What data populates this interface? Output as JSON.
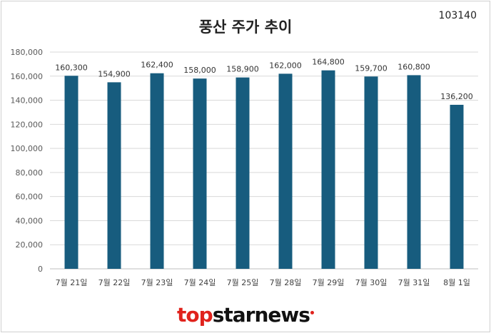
{
  "chart_data": {
    "type": "bar",
    "title": "풍산 주가 추이",
    "subtitle": "103140",
    "categories": [
      "7월 21일",
      "7월 22일",
      "7월 23일",
      "7월 24일",
      "7월 25일",
      "7월 28일",
      "7월 29일",
      "7월 30일",
      "7월 31일",
      "8월 1일"
    ],
    "values": [
      160300,
      154900,
      162400,
      158000,
      158900,
      162000,
      164800,
      159700,
      160800,
      136200
    ],
    "data_labels": [
      "160,300",
      "154,900",
      "162,400",
      "158,000",
      "158,900",
      "162,000",
      "164,800",
      "159,700",
      "160,800",
      "136,200"
    ],
    "yticks": [
      "0",
      "20,000",
      "40,000",
      "60,000",
      "80,000",
      "100,000",
      "120,000",
      "140,000",
      "160,000",
      "180,000"
    ],
    "ylim": [
      0,
      180000
    ],
    "xlabel": "",
    "ylabel": "",
    "grid": true,
    "legend": "none",
    "bar_color": "#175c7e"
  },
  "logo": {
    "text": "topstarnews"
  }
}
